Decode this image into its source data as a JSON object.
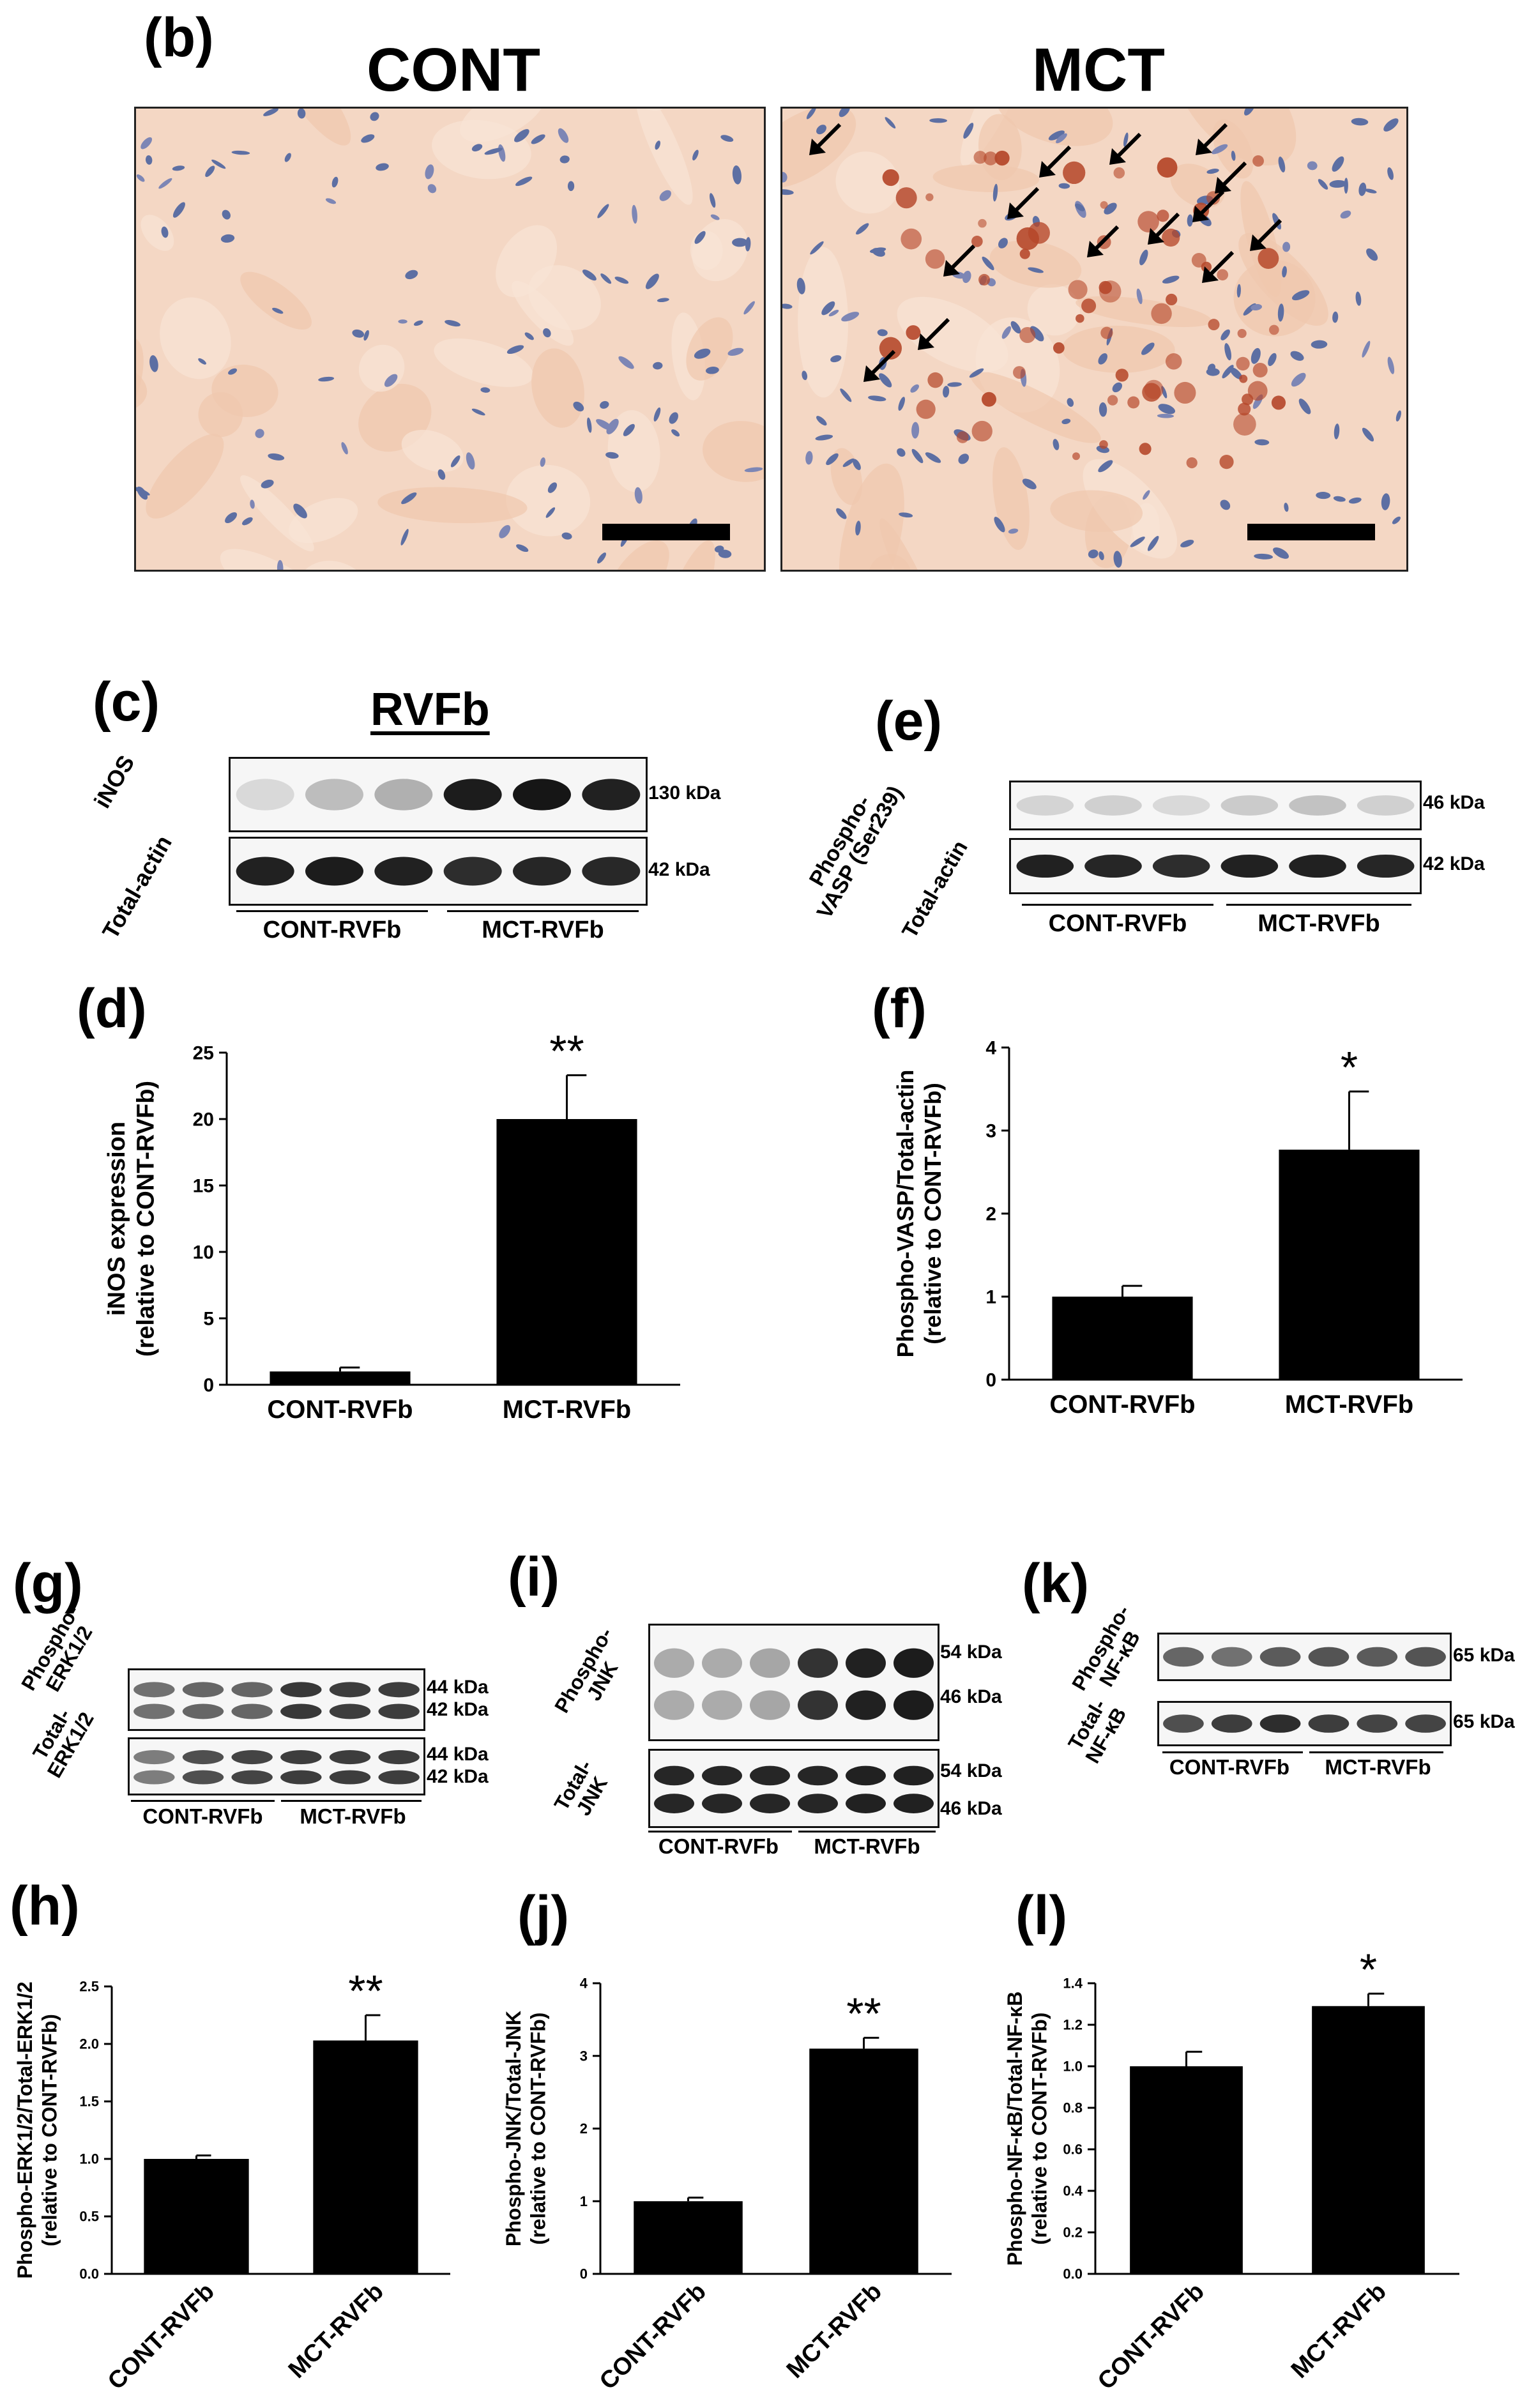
{
  "panels": {
    "b": "(b)",
    "c": "(c)",
    "d": "(d)",
    "e": "(e)",
    "f": "(f)",
    "g": "(g)",
    "h": "(h)",
    "i": "(i)",
    "j": "(j)",
    "k": "(k)",
    "l": "(l)"
  },
  "histology": {
    "cont_title": "CONT",
    "mct_title": "MCT"
  },
  "blot_c": {
    "title": "RVFb",
    "row1_label": "iNOS",
    "row2_label": "Total-actin",
    "row1_kda": "130 kDa",
    "row2_kda": "42 kDa",
    "group1": "CONT-RVFb",
    "group2": "MCT-RVFb"
  },
  "blot_e": {
    "row1_label_line1": "Phospho-",
    "row1_label_line2": "VASP (Ser239)",
    "row2_label": "Total-actin",
    "row1_kda": "46 kDa",
    "row2_kda": "42 kDa",
    "group1": "CONT-RVFb",
    "group2": "MCT-RVFb"
  },
  "blot_g": {
    "row1_label_line1": "Phospho-",
    "row1_label_line2": "ERK1/2",
    "row2_label_line1": "Total-",
    "row2_label_line2": "ERK1/2",
    "kda_44a": "44 kDa",
    "kda_42a": "42 kDa",
    "kda_44b": "44 kDa",
    "kda_42b": "42 kDa",
    "group1": "CONT-RVFb",
    "group2": "MCT-RVFb"
  },
  "blot_i": {
    "row1_label_line1": "Phospho-",
    "row1_label_line2": "JNK",
    "row2_label_line1": "Total-",
    "row2_label_line2": "JNK",
    "kda_54a": "54 kDa",
    "kda_46a": "46 kDa",
    "kda_54b": "54 kDa",
    "kda_46b": "46 kDa",
    "group1": "CONT-RVFb",
    "group2": "MCT-RVFb"
  },
  "blot_k": {
    "row1_label_line1": "Phospho-",
    "row1_label_line2": "NF-κB",
    "row2_label_line1": "Total-",
    "row2_label_line2": "NF-κB",
    "kda_a": "65 kDa",
    "kda_b": "65 kDa",
    "group1": "CONT-RVFb",
    "group2": "MCT-RVFb"
  },
  "chart_data": [
    {
      "panel": "d",
      "type": "bar",
      "categories": [
        "CONT-RVFb",
        "MCT-RVFb"
      ],
      "values": [
        1.0,
        20.0
      ],
      "errors": [
        0.3,
        3.3
      ],
      "significance": [
        "",
        "**"
      ],
      "ylabel_line1": "iNOS expression",
      "ylabel_line2": "(relative to CONT-RVFb)",
      "ylim": [
        0,
        25
      ],
      "yticks": [
        "0",
        "5",
        "10",
        "15",
        "20",
        "25"
      ],
      "bar_color": "#000000"
    },
    {
      "panel": "f",
      "type": "bar",
      "categories": [
        "CONT-RVFb",
        "MCT-RVFb"
      ],
      "values": [
        1.0,
        2.77
      ],
      "errors": [
        0.13,
        0.7
      ],
      "significance": [
        "",
        "*"
      ],
      "ylabel_line1": "Phospho-VASP/Total-actin",
      "ylabel_line2": "(relative to CONT-RVFb)",
      "ylim": [
        0,
        4
      ],
      "yticks": [
        "0",
        "1",
        "2",
        "3",
        "4"
      ],
      "bar_color": "#000000"
    },
    {
      "panel": "h",
      "type": "bar",
      "categories": [
        "CONT-RVFb",
        "MCT-RVFb"
      ],
      "values": [
        1.0,
        2.03
      ],
      "errors": [
        0.03,
        0.22
      ],
      "significance": [
        "",
        "**"
      ],
      "ylabel_line1": "Phospho-ERK1/2/Total-ERK1/2",
      "ylabel_line2": "(relative to CONT-RVFb)",
      "ylim": [
        0,
        2.5
      ],
      "yticks": [
        "0.0",
        "0.5",
        "1.0",
        "1.5",
        "2.0",
        "2.5"
      ],
      "bar_color": "#000000"
    },
    {
      "panel": "j",
      "type": "bar",
      "categories": [
        "CONT-RVFb",
        "MCT-RVFb"
      ],
      "values": [
        1.0,
        3.1
      ],
      "errors": [
        0.05,
        0.15
      ],
      "significance": [
        "",
        "**"
      ],
      "ylabel_line1": "Phospho-JNK/Total-JNK",
      "ylabel_line2": "(relative to CONT-RVFb)",
      "ylim": [
        0,
        4
      ],
      "yticks": [
        "0",
        "1",
        "2",
        "3",
        "4"
      ],
      "bar_color": "#000000"
    },
    {
      "panel": "l",
      "type": "bar",
      "categories": [
        "CONT-RVFb",
        "MCT-RVFb"
      ],
      "values": [
        1.0,
        1.29
      ],
      "errors": [
        0.07,
        0.06
      ],
      "significance": [
        "",
        "*"
      ],
      "ylabel_line1": "Phospho-NF-κB/Total-NF-κB",
      "ylabel_line2": "(relative to CONT-RVFb)",
      "ylim": [
        0,
        1.4
      ],
      "yticks": [
        "0.0",
        "0.2",
        "0.4",
        "0.6",
        "0.8",
        "1.0",
        "1.2",
        "1.4"
      ],
      "bar_color": "#000000"
    }
  ]
}
